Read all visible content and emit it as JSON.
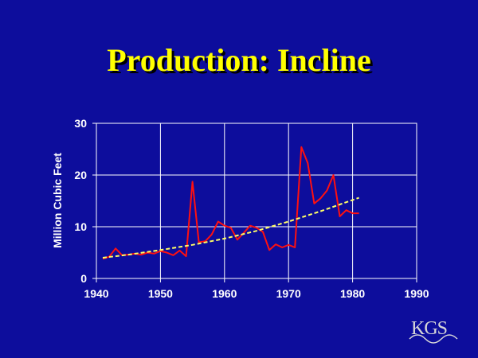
{
  "slide": {
    "title": "Production: Incline",
    "logo_text": "KGS"
  },
  "colors": {
    "background": "#0d0d9c",
    "title": "#ffff00",
    "data_line": "#ff1010",
    "trend_line": "#ffff66",
    "grid": "#ffffff"
  },
  "chart_data": {
    "type": "line",
    "title": "",
    "xlabel": "",
    "ylabel": "Million Cubic Feet",
    "xlim": [
      1940,
      1990
    ],
    "ylim": [
      0,
      30
    ],
    "xticks": [
      1940,
      1950,
      1960,
      1970,
      1980,
      1990
    ],
    "yticks": [
      0,
      10,
      20,
      30
    ],
    "grid": true,
    "series": [
      {
        "style": "solid",
        "color": "#ff1010",
        "x": [
          1941,
          1942,
          1943,
          1944,
          1945,
          1946,
          1947,
          1948,
          1949,
          1950,
          1951,
          1952,
          1953,
          1954,
          1955,
          1956,
          1957,
          1958,
          1959,
          1960,
          1961,
          1962,
          1963,
          1964,
          1965,
          1966,
          1967,
          1968,
          1969,
          1970,
          1971,
          1972,
          1973,
          1974,
          1975,
          1976,
          1977,
          1978,
          1979,
          1980,
          1981
        ],
        "y": [
          3.8,
          4.2,
          5.8,
          4.5,
          4.6,
          4.8,
          4.6,
          5.0,
          4.8,
          5.3,
          5.0,
          4.5,
          5.4,
          4.3,
          18.7,
          7.0,
          7.2,
          8.5,
          11.0,
          10.2,
          9.8,
          7.5,
          8.8,
          10.2,
          9.8,
          9.0,
          5.5,
          6.6,
          6.0,
          6.5,
          6.0,
          25.4,
          22.3,
          14.5,
          15.5,
          17.0,
          20.0,
          12.0,
          13.2,
          12.6,
          12.6
        ]
      },
      {
        "style": "dashed",
        "color": "#ffff66",
        "x": [
          1941,
          1945,
          1950,
          1955,
          1960,
          1965,
          1970,
          1975,
          1981
        ],
        "y": [
          4.0,
          4.6,
          5.5,
          6.5,
          7.7,
          9.2,
          11.0,
          13.0,
          15.6
        ]
      }
    ]
  }
}
